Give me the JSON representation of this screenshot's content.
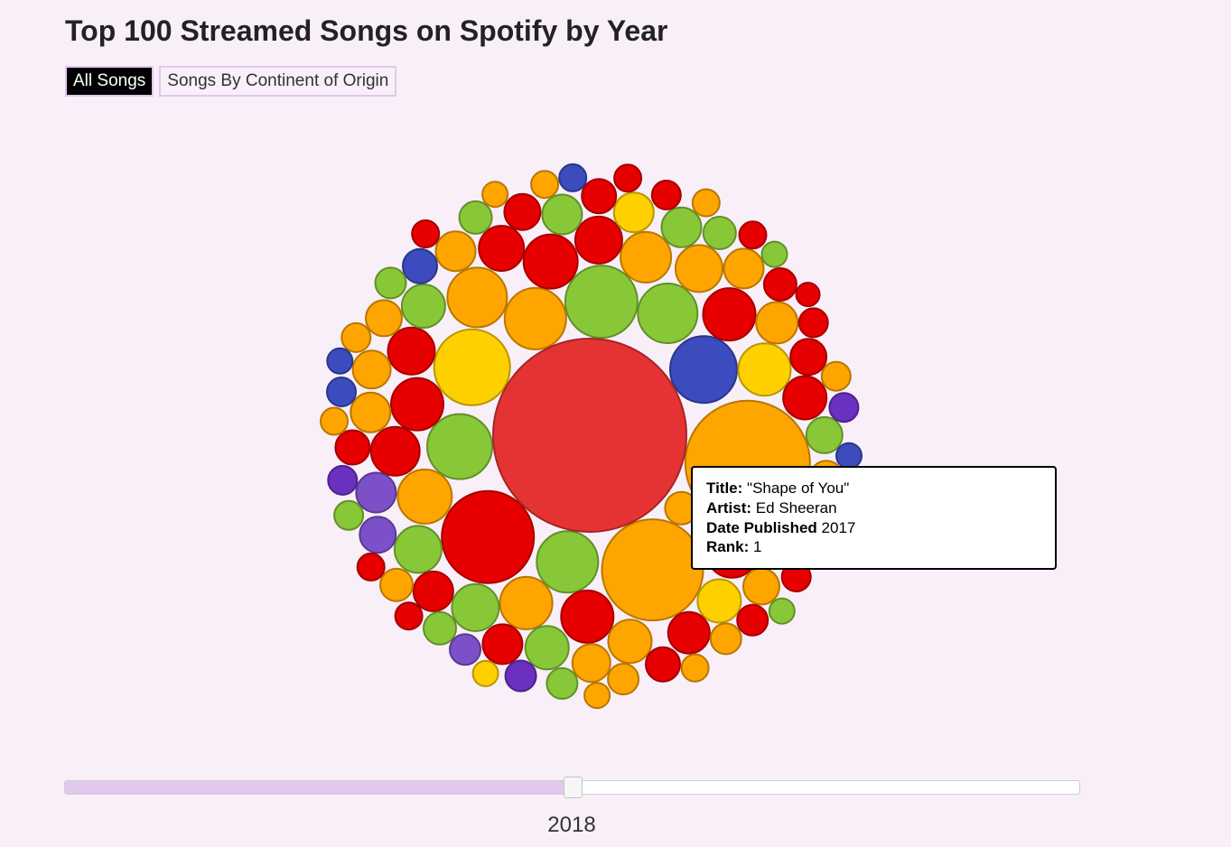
{
  "page": {
    "title": "Top 100 Streamed Songs on Spotify by Year"
  },
  "tabs": [
    {
      "label": "All Songs",
      "active": true
    },
    {
      "label": "Songs By Continent of Origin",
      "active": false
    }
  ],
  "tooltip": {
    "title_label": "Title:",
    "title_value": "\"Shape of You\"",
    "artist_label": "Artist:",
    "artist_value": "Ed Sheeran",
    "date_label": "Date Published",
    "date_value": "2017",
    "rank_label": "Rank:",
    "rank_value": "1"
  },
  "slider": {
    "value_fraction": 0.501,
    "year_label": "2018"
  },
  "colors": {
    "background": "#f8eff9",
    "red": "#e60000",
    "highlight": "#e53333",
    "orange": "#ffa500",
    "gold": "#ffd000",
    "green": "#88c838",
    "blue": "#3c4bbd",
    "purple": "#6a30c0",
    "lavender": "#7c50c8"
  },
  "chart_data": {
    "type": "bubble",
    "encoding": "circle area is proportional to streams; song with rank 1 is the largest circle",
    "highlighted": "Shape of You",
    "bubbles": [
      {
        "c": "highlight",
        "r": 107
      },
      {
        "c": "orange",
        "r": 69
      },
      {
        "c": "orange",
        "r": 56
      },
      {
        "c": "red",
        "r": 51
      },
      {
        "c": "blue",
        "r": 37
      },
      {
        "c": "green",
        "r": 40
      },
      {
        "c": "green",
        "r": 36
      },
      {
        "c": "orange",
        "r": 34
      },
      {
        "c": "gold",
        "r": 42
      },
      {
        "c": "green",
        "r": 34
      },
      {
        "c": "green",
        "r": 33
      },
      {
        "c": "orange",
        "r": 33
      },
      {
        "c": "red",
        "r": 29
      },
      {
        "c": "orange",
        "r": 29
      },
      {
        "c": "red",
        "r": 29
      },
      {
        "c": "orange",
        "r": 30
      },
      {
        "c": "red",
        "r": 30
      },
      {
        "c": "red",
        "r": 29
      },
      {
        "c": "red",
        "r": 29
      },
      {
        "c": "orange",
        "r": 28
      },
      {
        "c": "red",
        "r": 26
      },
      {
        "c": "red",
        "r": 27
      },
      {
        "c": "red",
        "r": 26
      },
      {
        "c": "orange",
        "r": 26
      },
      {
        "c": "green",
        "r": 26
      },
      {
        "c": "green",
        "r": 26
      },
      {
        "c": "red",
        "r": 25
      },
      {
        "c": "orange",
        "r": 24
      },
      {
        "c": "orange",
        "r": 23
      },
      {
        "c": "gold",
        "r": 29
      },
      {
        "c": "gold",
        "r": 24
      },
      {
        "c": "red",
        "r": 23
      },
      {
        "c": "green",
        "r": 24
      },
      {
        "c": "green",
        "r": 24
      },
      {
        "c": "orange",
        "r": 22
      },
      {
        "c": "red",
        "r": 22
      },
      {
        "c": "lavender",
        "r": 22
      },
      {
        "c": "green",
        "r": 22
      },
      {
        "c": "red",
        "r": 22
      },
      {
        "c": "orange",
        "r": 22
      },
      {
        "c": "green",
        "r": 22
      },
      {
        "c": "gold",
        "r": 22
      },
      {
        "c": "orange",
        "r": 21
      },
      {
        "c": "orange",
        "r": 21
      },
      {
        "c": "red",
        "r": 24
      },
      {
        "c": "orange",
        "r": 22
      },
      {
        "c": "orange",
        "r": 20
      },
      {
        "c": "red",
        "r": 20
      },
      {
        "c": "red",
        "r": 20
      },
      {
        "c": "purple",
        "r": 24
      },
      {
        "c": "red",
        "r": 19
      },
      {
        "c": "red",
        "r": 19
      },
      {
        "c": "blue",
        "r": 19
      },
      {
        "c": "lavender",
        "r": 20
      },
      {
        "c": "green",
        "r": 20
      },
      {
        "c": "orange",
        "r": 20
      },
      {
        "c": "orange",
        "r": 18
      },
      {
        "c": "orange",
        "r": 20
      },
      {
        "c": "orange",
        "r": 18
      },
      {
        "c": "green",
        "r": 18
      },
      {
        "c": "red",
        "r": 19
      },
      {
        "c": "red",
        "r": 18
      },
      {
        "c": "green",
        "r": 18
      },
      {
        "c": "orange",
        "r": 17
      },
      {
        "c": "orange",
        "r": 17
      },
      {
        "c": "orange",
        "r": 18
      },
      {
        "c": "red",
        "r": 17
      },
      {
        "c": "lavender",
        "r": 17
      },
      {
        "c": "green",
        "r": 17
      },
      {
        "c": "purple",
        "r": 17
      },
      {
        "c": "red",
        "r": 16
      },
      {
        "c": "red",
        "r": 16
      },
      {
        "c": "purple",
        "r": 16
      },
      {
        "c": "blue",
        "r": 16
      },
      {
        "c": "red",
        "r": 16
      },
      {
        "c": "orange",
        "r": 16
      },
      {
        "c": "green",
        "r": 18
      },
      {
        "c": "orange",
        "r": 15
      },
      {
        "c": "orange",
        "r": 16
      },
      {
        "c": "red",
        "r": 15
      },
      {
        "c": "orange",
        "r": 15
      },
      {
        "c": "green",
        "r": 16
      },
      {
        "c": "green",
        "r": 17
      },
      {
        "c": "red",
        "r": 15
      },
      {
        "c": "orange",
        "r": 15
      },
      {
        "c": "blue",
        "r": 15
      },
      {
        "c": "red",
        "r": 15
      },
      {
        "c": "blue",
        "r": 16
      },
      {
        "c": "red",
        "r": 15
      },
      {
        "c": "orange",
        "r": 15
      },
      {
        "c": "green",
        "r": 14
      },
      {
        "c": "orange",
        "r": 14
      },
      {
        "c": "blue",
        "r": 14
      },
      {
        "c": "gold",
        "r": 14
      },
      {
        "c": "orange",
        "r": 14
      },
      {
        "c": "green",
        "r": 14
      },
      {
        "c": "blue",
        "r": 14
      },
      {
        "c": "red",
        "r": 13
      },
      {
        "c": "red",
        "r": 15
      },
      {
        "c": "purple",
        "r": 16
      }
    ]
  }
}
